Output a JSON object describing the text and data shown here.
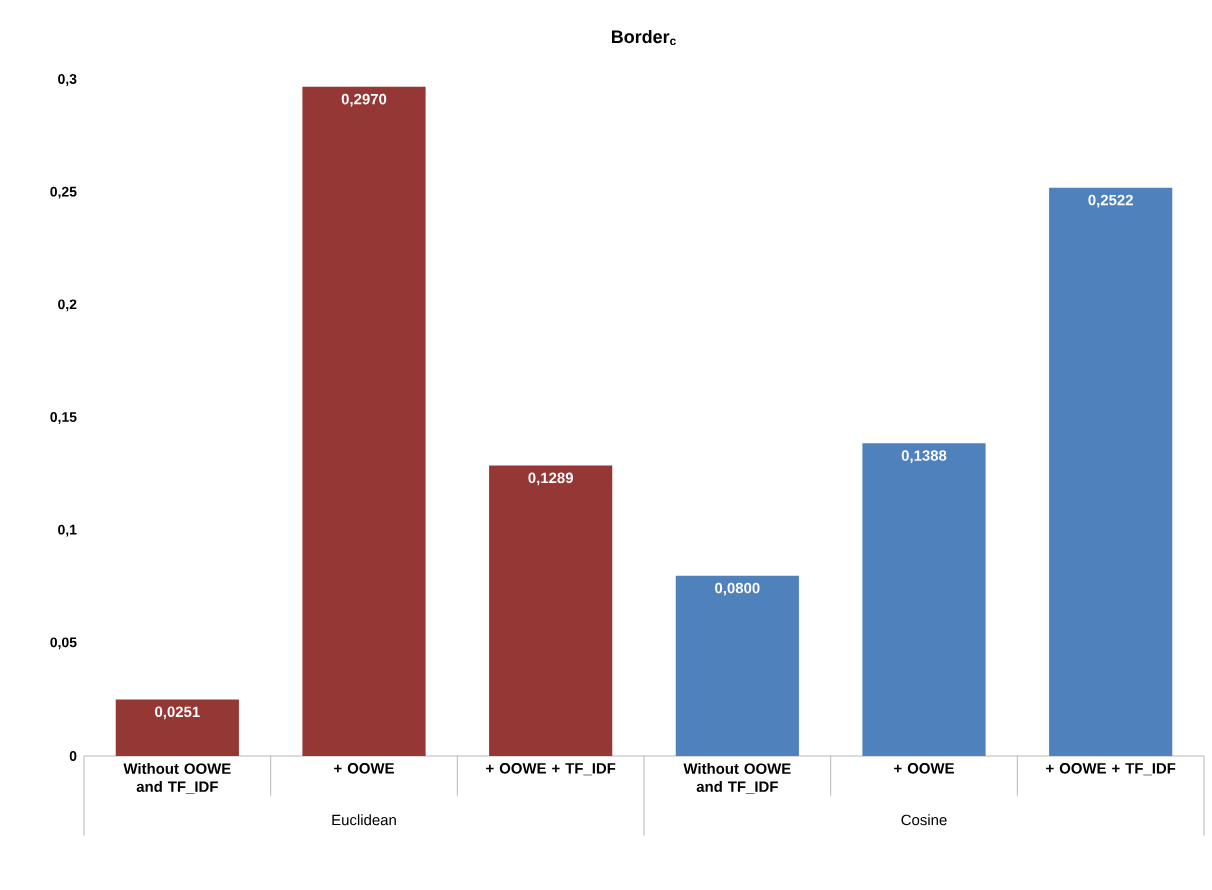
{
  "chart_data": {
    "type": "bar",
    "title": "Border$_{c}$",
    "categories": [
      "Without OOWE and TF_IDF",
      "+ OOWE",
      "+ OOWE + TF_IDF",
      "Without OOWE and TF_IDF",
      "+ OOWE",
      "+ OOWE + TF_IDF"
    ],
    "values": [
      0.0251,
      0.297,
      0.1289,
      0.08,
      0.1388,
      0.2522
    ],
    "value_labels": [
      "0,0251",
      "0,2970",
      "0,1289",
      "0,0800",
      "0,1388",
      "0,2522"
    ],
    "colors": [
      "#953735",
      "#953735",
      "#953735",
      "#4f81bd",
      "#4f81bd",
      "#4f81bd"
    ],
    "annotations": [
      "Euclidean",
      "Cosine"
    ],
    "ylim": [
      0,
      0.3
    ],
    "yticks": [
      0,
      {
        "value": 0.05,
        "label": "0,05"
      },
      {
        "value": 0.1,
        "label": "0,1"
      },
      {
        "value": 0.15,
        "label": "0,15"
      },
      {
        "value": 0.2,
        "label": "0,2"
      },
      {
        "value": 0.25,
        "label": "0,25"
      },
      {
        "value": 0.3,
        "label": "0,3"
      }
    ],
    "grid": false
  }
}
